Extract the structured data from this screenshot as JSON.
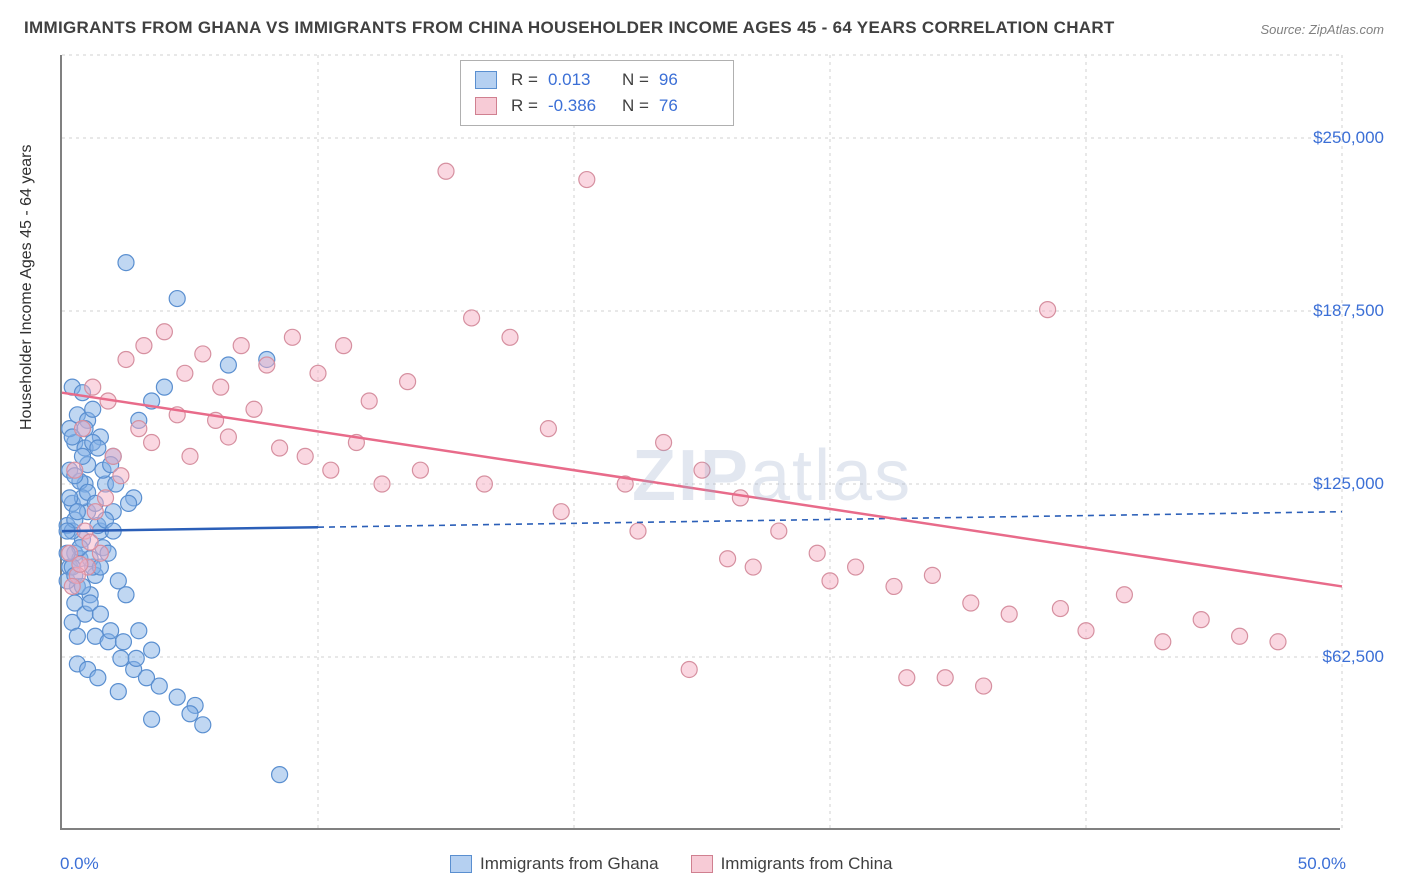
{
  "title": "IMMIGRANTS FROM GHANA VS IMMIGRANTS FROM CHINA HOUSEHOLDER INCOME AGES 45 - 64 YEARS CORRELATION CHART",
  "source": "Source: ZipAtlas.com",
  "ylabel": "Householder Income Ages 45 - 64 years",
  "watermark_bold": "ZIP",
  "watermark_rest": "atlas",
  "chart": {
    "type": "scatter",
    "xlim": [
      0,
      50
    ],
    "ylim": [
      0,
      280000
    ],
    "xtick_label_min": "0.0%",
    "xtick_label_max": "50.0%",
    "yticks": [
      62500,
      125000,
      187500,
      250000
    ],
    "ytick_labels": [
      "$62,500",
      "$125,000",
      "$187,500",
      "$250,000"
    ],
    "xgrid_positions": [
      10,
      20,
      30,
      40
    ],
    "background_color": "#ffffff",
    "grid_color": "#d0d0d0",
    "axis_color": "#808080",
    "tick_label_color": "#3b6fd6",
    "tick_fontsize": 17
  },
  "series": [
    {
      "name": "Immigrants from Ghana",
      "color_fill": "rgba(130,175,230,0.5)",
      "color_stroke": "#5a8fd0",
      "marker_radius": 8,
      "R": "0.013",
      "N": "96",
      "trend": {
        "x1": 0,
        "y1": 108000,
        "x2": 50,
        "y2": 115000,
        "solid_until_x": 10,
        "color": "#2b5fb8",
        "width": 2.5
      },
      "points": [
        [
          0.2,
          110000
        ],
        [
          0.3,
          95000
        ],
        [
          0.4,
          118000
        ],
        [
          0.5,
          100000
        ],
        [
          0.6,
          88000
        ],
        [
          0.8,
          105000
        ],
        [
          0.9,
          125000
        ],
        [
          1.0,
          115000
        ],
        [
          0.3,
          130000
        ],
        [
          0.5,
          140000
        ],
        [
          0.7,
          98000
        ],
        [
          0.4,
          75000
        ],
        [
          0.6,
          70000
        ],
        [
          1.1,
          85000
        ],
        [
          1.3,
          92000
        ],
        [
          1.5,
          108000
        ],
        [
          0.2,
          90000
        ],
        [
          0.4,
          108000
        ],
        [
          0.8,
          120000
        ],
        [
          1.0,
          132000
        ],
        [
          1.2,
          95000
        ],
        [
          1.6,
          102000
        ],
        [
          2.0,
          115000
        ],
        [
          0.5,
          112000
        ],
        [
          0.7,
          126000
        ],
        [
          0.9,
          138000
        ],
        [
          1.8,
          100000
        ],
        [
          2.2,
          90000
        ],
        [
          2.5,
          85000
        ],
        [
          3.0,
          72000
        ],
        [
          3.5,
          65000
        ],
        [
          1.4,
          110000
        ],
        [
          0.3,
          145000
        ],
        [
          0.6,
          150000
        ],
        [
          1.0,
          148000
        ],
        [
          1.5,
          142000
        ],
        [
          2.0,
          135000
        ],
        [
          2.8,
          120000
        ],
        [
          0.4,
          160000
        ],
        [
          0.8,
          158000
        ],
        [
          1.2,
          152000
        ],
        [
          1.7,
          125000
        ],
        [
          0.5,
          82000
        ],
        [
          0.9,
          78000
        ],
        [
          1.3,
          70000
        ],
        [
          1.8,
          68000
        ],
        [
          2.3,
          62000
        ],
        [
          2.8,
          58000
        ],
        [
          3.3,
          55000
        ],
        [
          3.8,
          52000
        ],
        [
          4.5,
          48000
        ],
        [
          5.2,
          45000
        ],
        [
          0.6,
          60000
        ],
        [
          1.0,
          58000
        ],
        [
          1.4,
          55000
        ],
        [
          0.2,
          108000
        ],
        [
          0.4,
          95000
        ],
        [
          0.7,
          102000
        ],
        [
          1.1,
          98000
        ],
        [
          1.5,
          95000
        ],
        [
          0.3,
          120000
        ],
        [
          0.5,
          128000
        ],
        [
          0.8,
          135000
        ],
        [
          1.2,
          140000
        ],
        [
          1.6,
          130000
        ],
        [
          2.1,
          125000
        ],
        [
          2.6,
          118000
        ],
        [
          0.4,
          142000
        ],
        [
          0.9,
          145000
        ],
        [
          1.4,
          138000
        ],
        [
          1.9,
          132000
        ],
        [
          0.2,
          100000
        ],
        [
          0.5,
          92000
        ],
        [
          0.8,
          88000
        ],
        [
          1.1,
          82000
        ],
        [
          1.5,
          78000
        ],
        [
          1.9,
          72000
        ],
        [
          2.4,
          68000
        ],
        [
          2.9,
          62000
        ],
        [
          2.5,
          205000
        ],
        [
          4.5,
          192000
        ],
        [
          5.0,
          42000
        ],
        [
          5.5,
          38000
        ],
        [
          6.5,
          168000
        ],
        [
          8.0,
          170000
        ],
        [
          4.0,
          160000
        ],
        [
          3.5,
          155000
        ],
        [
          3.0,
          148000
        ],
        [
          0.6,
          115000
        ],
        [
          1.0,
          122000
        ],
        [
          1.3,
          118000
        ],
        [
          1.7,
          112000
        ],
        [
          2.0,
          108000
        ],
        [
          8.5,
          20000
        ],
        [
          3.5,
          40000
        ],
        [
          2.2,
          50000
        ]
      ]
    },
    {
      "name": "Immigrants from China",
      "color_fill": "rgba(245,175,195,0.5)",
      "color_stroke": "#d690a0",
      "marker_radius": 8,
      "R": "-0.386",
      "N": "76",
      "trend": {
        "x1": 0,
        "y1": 158000,
        "x2": 50,
        "y2": 88000,
        "solid_until_x": 50,
        "color": "#e86b8a",
        "width": 2.5
      },
      "points": [
        [
          0.3,
          100000
        ],
        [
          0.5,
          130000
        ],
        [
          0.8,
          145000
        ],
        [
          1.2,
          160000
        ],
        [
          1.8,
          155000
        ],
        [
          2.5,
          170000
        ],
        [
          3.2,
          175000
        ],
        [
          4.0,
          180000
        ],
        [
          4.8,
          165000
        ],
        [
          5.5,
          172000
        ],
        [
          6.2,
          160000
        ],
        [
          7.0,
          175000
        ],
        [
          8.0,
          168000
        ],
        [
          9.0,
          178000
        ],
        [
          10.0,
          165000
        ],
        [
          11.0,
          175000
        ],
        [
          12.0,
          155000
        ],
        [
          13.5,
          162000
        ],
        [
          15.0,
          238000
        ],
        [
          16.0,
          185000
        ],
        [
          17.5,
          178000
        ],
        [
          19.0,
          145000
        ],
        [
          20.5,
          235000
        ],
        [
          22.0,
          125000
        ],
        [
          23.5,
          140000
        ],
        [
          25.0,
          130000
        ],
        [
          26.5,
          120000
        ],
        [
          28.0,
          108000
        ],
        [
          29.5,
          100000
        ],
        [
          31.0,
          95000
        ],
        [
          32.5,
          88000
        ],
        [
          34.0,
          92000
        ],
        [
          35.5,
          82000
        ],
        [
          37.0,
          78000
        ],
        [
          38.5,
          188000
        ],
        [
          40.0,
          72000
        ],
        [
          41.5,
          85000
        ],
        [
          43.0,
          68000
        ],
        [
          44.5,
          76000
        ],
        [
          46.0,
          70000
        ],
        [
          47.5,
          68000
        ],
        [
          3.5,
          140000
        ],
        [
          5.0,
          135000
        ],
        [
          6.5,
          142000
        ],
        [
          8.5,
          138000
        ],
        [
          10.5,
          130000
        ],
        [
          12.5,
          125000
        ],
        [
          2.0,
          135000
        ],
        [
          3.0,
          145000
        ],
        [
          4.5,
          150000
        ],
        [
          6.0,
          148000
        ],
        [
          7.5,
          152000
        ],
        [
          9.5,
          135000
        ],
        [
          11.5,
          140000
        ],
        [
          14.0,
          130000
        ],
        [
          16.5,
          125000
        ],
        [
          19.5,
          115000
        ],
        [
          22.5,
          108000
        ],
        [
          26.0,
          98000
        ],
        [
          30.0,
          90000
        ],
        [
          34.5,
          55000
        ],
        [
          24.5,
          58000
        ],
        [
          27.0,
          95000
        ],
        [
          33.0,
          55000
        ],
        [
          36.0,
          52000
        ],
        [
          39.0,
          80000
        ],
        [
          1.0,
          95000
        ],
        [
          1.5,
          100000
        ],
        [
          0.6,
          92000
        ],
        [
          0.9,
          108000
        ],
        [
          1.3,
          115000
        ],
        [
          1.7,
          120000
        ],
        [
          2.3,
          128000
        ],
        [
          0.4,
          88000
        ],
        [
          0.7,
          96000
        ],
        [
          1.1,
          104000
        ]
      ]
    }
  ],
  "legend_top": {
    "label_R": "R =",
    "label_N": "N ="
  },
  "legend_bottom": {
    "items": [
      "Immigrants from Ghana",
      "Immigrants from China"
    ]
  }
}
